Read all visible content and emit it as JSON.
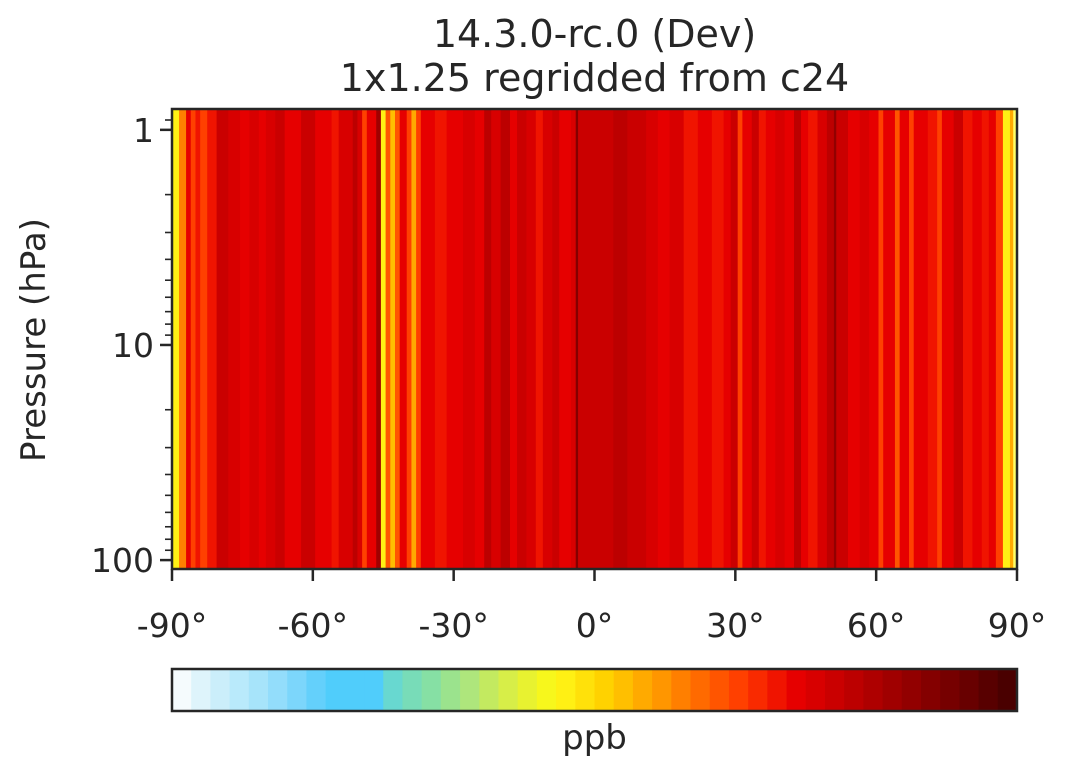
{
  "chart_data": {
    "type": "heatmap",
    "title": "14.3.0-rc.0 (Dev)",
    "subtitle": "1x1.25 regridded from c24",
    "xlabel": "",
    "ylabel": "Pressure (hPa)",
    "xlim": [
      -90,
      90
    ],
    "ylim": [
      110,
      0.8
    ],
    "yscale": "log",
    "x_ticks": [
      -90,
      -60,
      -30,
      0,
      30,
      60,
      90
    ],
    "x_tick_labels": [
      "-90°",
      "-60°",
      "-30°",
      "0°",
      "30°",
      "60°",
      "90°"
    ],
    "y_ticks": [
      1,
      10,
      100
    ],
    "y_tick_labels": [
      "1",
      "10",
      "100"
    ],
    "colorbar": {
      "label": "ppb",
      "colors": [
        "#f5fbfd",
        "#def4fb",
        "#cbeefa",
        "#b9eafb",
        "#a7e4fa",
        "#93ddfb",
        "#7cd6fb",
        "#64d0fb",
        "#50cdfb",
        "#50cdfb",
        "#50cdfb",
        "#68d8d0",
        "#78dcb8",
        "#86e0a4",
        "#9be38d",
        "#aee67c",
        "#c3ea60",
        "#d7ee48",
        "#e8f230",
        "#f7f71c",
        "#fff014",
        "#ffe10a",
        "#ffd200",
        "#ffbf00",
        "#ffaa00",
        "#ff9600",
        "#ff7f00",
        "#ff6a00",
        "#ff5500",
        "#ff4000",
        "#f92a00",
        "#f01400",
        "#e60000",
        "#d80000",
        "#ca0000",
        "#bc0000",
        "#ae0000",
        "#a00000",
        "#920000",
        "#840000",
        "#760000",
        "#680000",
        "#580000",
        "#4a0000"
      ]
    },
    "columns": [
      {
        "lat": -90.0,
        "color": "#fff014"
      },
      {
        "lat": -88.5,
        "color": "#ff7f00"
      },
      {
        "lat": -87.0,
        "color": "#e60000"
      },
      {
        "lat": -86.0,
        "color": "#ff4000"
      },
      {
        "lat": -85.0,
        "color": "#f01400"
      },
      {
        "lat": -84.0,
        "color": "#ff4000"
      },
      {
        "lat": -82.5,
        "color": "#f01400"
      },
      {
        "lat": -80.5,
        "color": "#ca0000"
      },
      {
        "lat": -78.0,
        "color": "#d80000"
      },
      {
        "lat": -75.5,
        "color": "#e60000"
      },
      {
        "lat": -73.5,
        "color": "#d80000"
      },
      {
        "lat": -71.5,
        "color": "#e60000"
      },
      {
        "lat": -70.0,
        "color": "#d80000"
      },
      {
        "lat": -68.0,
        "color": "#ca0000"
      },
      {
        "lat": -66.0,
        "color": "#e60000"
      },
      {
        "lat": -62.5,
        "color": "#ca0000"
      },
      {
        "lat": -59.5,
        "color": "#e60000"
      },
      {
        "lat": -56.0,
        "color": "#f01400"
      },
      {
        "lat": -54.5,
        "color": "#d80000"
      },
      {
        "lat": -51.5,
        "color": "#bc0000"
      },
      {
        "lat": -50.5,
        "color": "#d80000"
      },
      {
        "lat": -49.5,
        "color": "#ff4000"
      },
      {
        "lat": -48.5,
        "color": "#e60000"
      },
      {
        "lat": -46.5,
        "color": "#a00000"
      },
      {
        "lat": -45.5,
        "color": "#fff014"
      },
      {
        "lat": -44.5,
        "color": "#ff5500"
      },
      {
        "lat": -43.5,
        "color": "#ffbf00"
      },
      {
        "lat": -42.5,
        "color": "#ff5500"
      },
      {
        "lat": -41.5,
        "color": "#e60000"
      },
      {
        "lat": -40.0,
        "color": "#ff4000"
      },
      {
        "lat": -39.0,
        "color": "#ffaa00"
      },
      {
        "lat": -38.0,
        "color": "#ff4000"
      },
      {
        "lat": -37.0,
        "color": "#e60000"
      },
      {
        "lat": -34.0,
        "color": "#f01400"
      },
      {
        "lat": -31.5,
        "color": "#e60000"
      },
      {
        "lat": -28.0,
        "color": "#d80000"
      },
      {
        "lat": -25.5,
        "color": "#e60000"
      },
      {
        "lat": -23.5,
        "color": "#bc0000"
      },
      {
        "lat": -22.0,
        "color": "#d80000"
      },
      {
        "lat": -20.0,
        "color": "#bc0000"
      },
      {
        "lat": -18.0,
        "color": "#e60000"
      },
      {
        "lat": -16.5,
        "color": "#ca0000"
      },
      {
        "lat": -14.5,
        "color": "#d80000"
      },
      {
        "lat": -12.5,
        "color": "#f01400"
      },
      {
        "lat": -11.0,
        "color": "#d80000"
      },
      {
        "lat": -9.0,
        "color": "#ca0000"
      },
      {
        "lat": -7.5,
        "color": "#e60000"
      },
      {
        "lat": -5.0,
        "color": "#d80000"
      },
      {
        "lat": -4.0,
        "color": "#840000"
      },
      {
        "lat": -3.5,
        "color": "#ca0000"
      },
      {
        "lat": 0.0,
        "color": "#ca0000"
      },
      {
        "lat": 4.0,
        "color": "#bc0000"
      },
      {
        "lat": 7.0,
        "color": "#ca0000"
      },
      {
        "lat": 11.0,
        "color": "#d80000"
      },
      {
        "lat": 13.5,
        "color": "#e60000"
      },
      {
        "lat": 16.0,
        "color": "#d80000"
      },
      {
        "lat": 19.0,
        "color": "#f01400"
      },
      {
        "lat": 22.0,
        "color": "#e60000"
      },
      {
        "lat": 25.0,
        "color": "#f01400"
      },
      {
        "lat": 27.5,
        "color": "#e60000"
      },
      {
        "lat": 29.0,
        "color": "#ca0000"
      },
      {
        "lat": 30.5,
        "color": "#ff4000"
      },
      {
        "lat": 31.5,
        "color": "#e60000"
      },
      {
        "lat": 33.5,
        "color": "#ca0000"
      },
      {
        "lat": 35.0,
        "color": "#f01400"
      },
      {
        "lat": 36.5,
        "color": "#e60000"
      },
      {
        "lat": 38.5,
        "color": "#d80000"
      },
      {
        "lat": 40.5,
        "color": "#e60000"
      },
      {
        "lat": 42.5,
        "color": "#bc0000"
      },
      {
        "lat": 44.0,
        "color": "#e60000"
      },
      {
        "lat": 45.5,
        "color": "#f01400"
      },
      {
        "lat": 47.5,
        "color": "#d80000"
      },
      {
        "lat": 49.5,
        "color": "#bc0000"
      },
      {
        "lat": 51.0,
        "color": "#920000"
      },
      {
        "lat": 51.5,
        "color": "#ca0000"
      },
      {
        "lat": 54.0,
        "color": "#e60000"
      },
      {
        "lat": 56.5,
        "color": "#d80000"
      },
      {
        "lat": 58.5,
        "color": "#e60000"
      },
      {
        "lat": 60.5,
        "color": "#ff4000"
      },
      {
        "lat": 61.5,
        "color": "#e60000"
      },
      {
        "lat": 64.0,
        "color": "#ff5500"
      },
      {
        "lat": 65.0,
        "color": "#e60000"
      },
      {
        "lat": 67.0,
        "color": "#ff4000"
      },
      {
        "lat": 68.0,
        "color": "#e60000"
      },
      {
        "lat": 71.0,
        "color": "#f01400"
      },
      {
        "lat": 73.0,
        "color": "#ff4000"
      },
      {
        "lat": 74.0,
        "color": "#e60000"
      },
      {
        "lat": 76.5,
        "color": "#ca0000"
      },
      {
        "lat": 78.5,
        "color": "#f01400"
      },
      {
        "lat": 80.5,
        "color": "#e60000"
      },
      {
        "lat": 82.5,
        "color": "#f01400"
      },
      {
        "lat": 84.0,
        "color": "#e60000"
      },
      {
        "lat": 85.5,
        "color": "#ff4000"
      },
      {
        "lat": 87.0,
        "color": "#fff014"
      },
      {
        "lat": 88.5,
        "color": "#ffaa00"
      },
      {
        "lat": 89.2,
        "color": "#ffff66"
      }
    ]
  }
}
